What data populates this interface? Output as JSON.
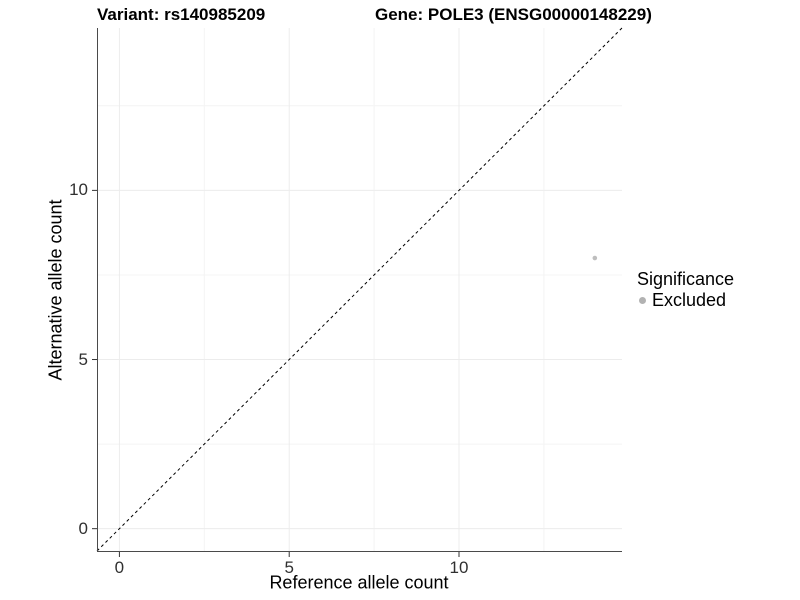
{
  "chart_data": {
    "type": "scatter",
    "title_left": "Variant: rs140985209",
    "title_right": "Gene: POLE3 (ENSG00000148229)",
    "xlabel": "Reference allele count",
    "ylabel": "Alternative allele count",
    "xlim": [
      -0.66,
      14.8
    ],
    "ylim": [
      -0.66,
      14.8
    ],
    "x_ticks": [
      0,
      5,
      10
    ],
    "y_ticks": [
      0,
      5,
      10
    ],
    "x_minor_ticks": [
      2.5,
      7.5,
      12.5
    ],
    "y_minor_ticks": [
      2.5,
      7.5,
      12.5
    ],
    "grid": true,
    "identity_line": {
      "style": "dashed",
      "slope": 1,
      "intercept": 0
    },
    "series": [
      {
        "name": "Excluded",
        "color": "#bebebe",
        "point_radius": 2.3,
        "points": [
          {
            "x": 14,
            "y": 8
          }
        ]
      }
    ],
    "legend": {
      "position": "right",
      "title": "Significance",
      "items": [
        {
          "label": "Excluded",
          "color": "#b2b2b2"
        }
      ]
    }
  },
  "colors": {
    "background": "#ffffff",
    "grid_major": "#ececec",
    "grid_minor": "#f4f4f4",
    "axis_line": "#4a4a4a",
    "tick_mark": "#333333",
    "tick_text": "#303030",
    "identity_line": "#000000"
  }
}
